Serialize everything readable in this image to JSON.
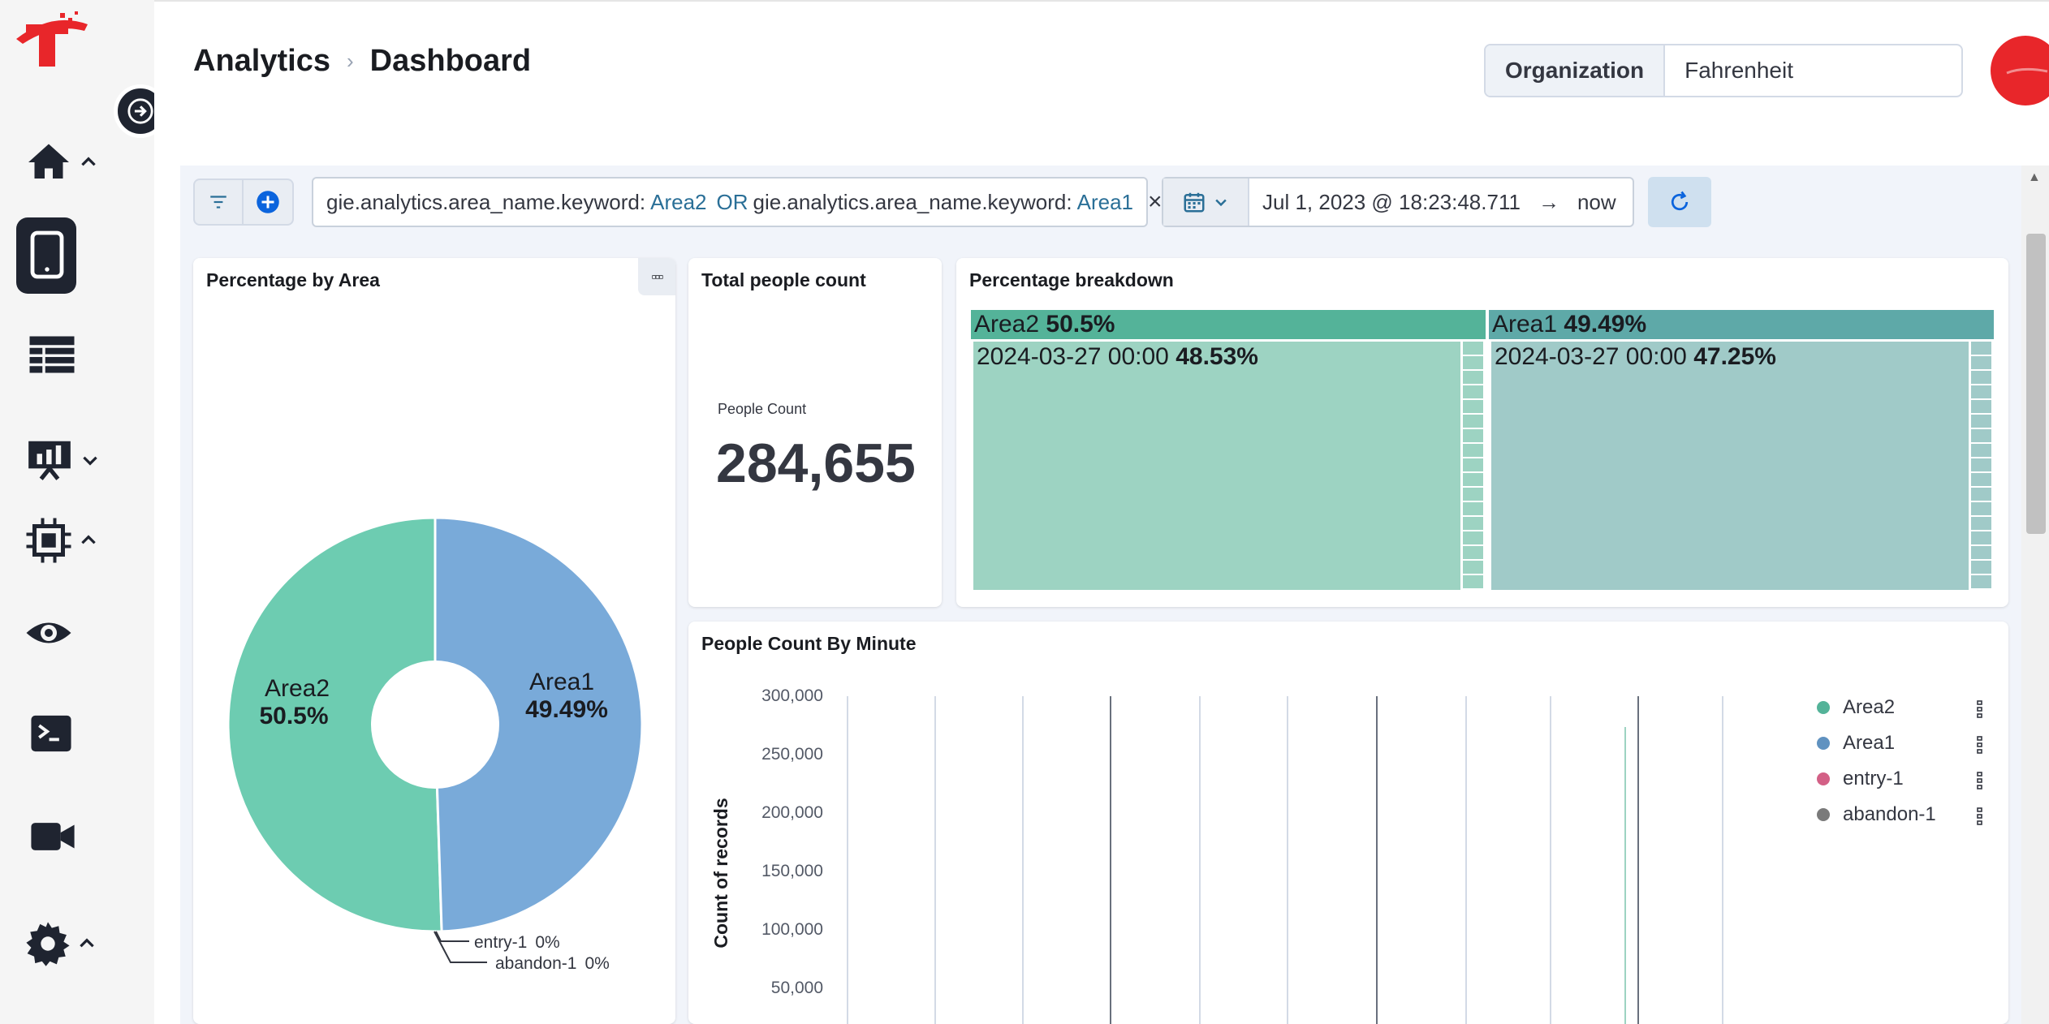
{
  "breadcrumb": {
    "section": "Analytics",
    "separator": "›",
    "page": "Dashboard"
  },
  "organization": {
    "label": "Organization",
    "value": "Fahrenheit"
  },
  "nav": {
    "items": [
      "home-icon",
      "tablet-icon",
      "table-icon",
      "presentation-chart-icon",
      "chip-icon",
      "eye-icon",
      "terminal-icon",
      "video-icon",
      "gear-icon"
    ],
    "active": "tablet-icon"
  },
  "query": {
    "field1": "gie.analytics.area_name.keyword:",
    "value1": "Area2",
    "operator": "OR",
    "field2": "gie.analytics.area_name.keyword:",
    "value2": "Area1",
    "clear": "×"
  },
  "date": {
    "start": "Jul 1, 2023 @ 18:23:48.711",
    "arrow": "→",
    "end": "now"
  },
  "panels": {
    "pie": {
      "title": "Percentage by Area",
      "menu": "▫▫▫",
      "slices": [
        {
          "name": "Area2",
          "pct_label": "50.5%",
          "value": 50.5,
          "color": "#6dccb1"
        },
        {
          "name": "Area1",
          "pct_label": "49.49%",
          "value": 49.49,
          "color": "#79aad9"
        }
      ],
      "small_labels": [
        {
          "name": "entry-1",
          "pct": "0%"
        },
        {
          "name": "abandon-1",
          "pct": "0%"
        }
      ]
    },
    "metric": {
      "title": "Total people count",
      "label": "People Count",
      "value": "284,655"
    },
    "treemap": {
      "title": "Percentage breakdown",
      "groups": [
        {
          "name": "Area2",
          "pct": "50.5%",
          "child": "2024-03-27 00:00",
          "child_pct": "48.53%",
          "head_color": "#54b399",
          "body_color": "#9dd3c2"
        },
        {
          "name": "Area1",
          "pct": "49.49%",
          "child": "2024-03-27 00:00",
          "child_pct": "47.25%",
          "head_color": "#5ea9a8",
          "body_color": "#a0cac8"
        }
      ]
    },
    "line": {
      "title": "People Count By Minute",
      "ylabel": "Count of records",
      "yticks": [
        "300,000",
        "250,000",
        "200,000",
        "150,000",
        "100,000",
        "50,000"
      ],
      "legend": [
        {
          "name": "Area2",
          "color": "#54b399"
        },
        {
          "name": "Area1",
          "color": "#6092c0"
        },
        {
          "name": "entry-1",
          "color": "#d36086"
        },
        {
          "name": "abandon-1",
          "color": "#7a7a7a"
        }
      ]
    }
  }
}
